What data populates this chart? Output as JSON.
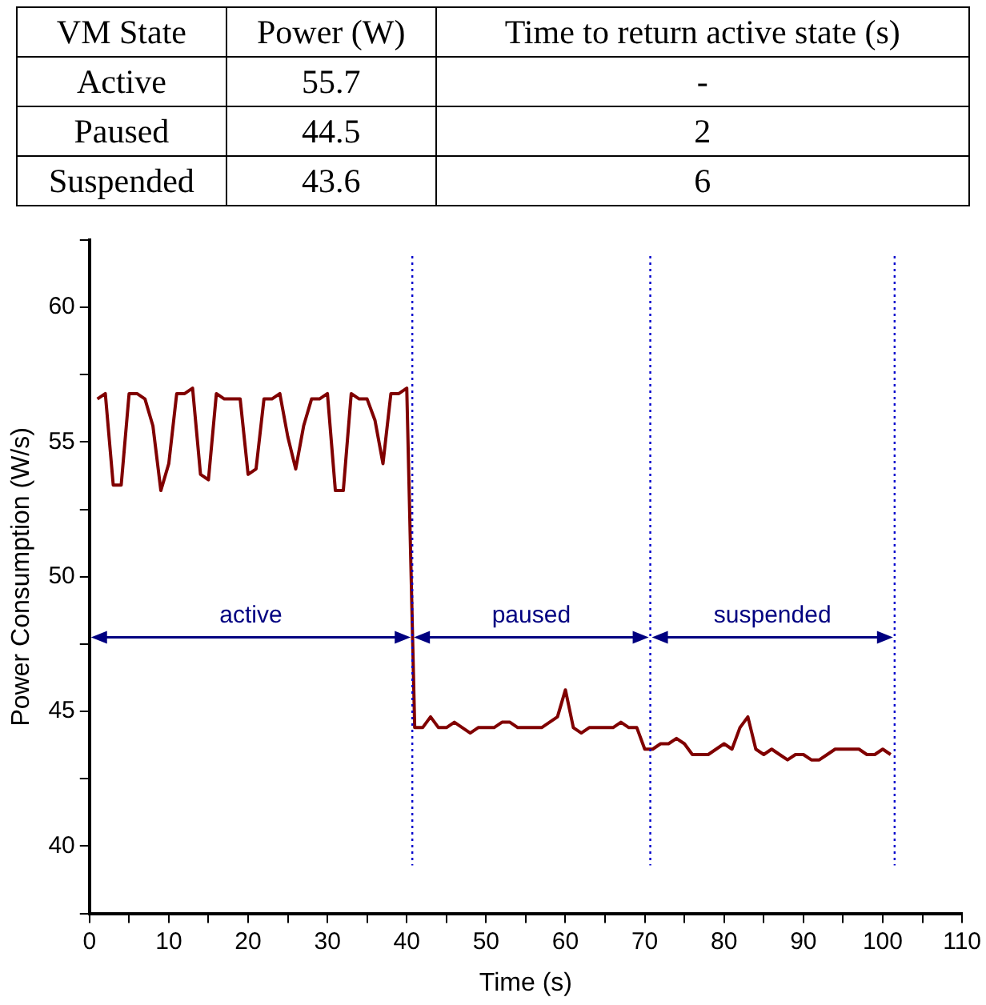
{
  "chart_data": {
    "type": "line",
    "xlabel": "Time (s)",
    "ylabel": "Power Consumption (W/s)",
    "x": [
      1,
      2,
      3,
      4,
      5,
      6,
      7,
      8,
      9,
      10,
      11,
      12,
      13,
      14,
      15,
      16,
      17,
      18,
      19,
      20,
      21,
      22,
      23,
      24,
      25,
      26,
      27,
      28,
      29,
      30,
      31,
      32,
      33,
      34,
      35,
      36,
      37,
      38,
      39,
      40,
      41,
      42,
      43,
      44,
      45,
      46,
      47,
      48,
      49,
      50,
      51,
      52,
      53,
      54,
      55,
      56,
      57,
      58,
      59,
      60,
      61,
      62,
      63,
      64,
      65,
      66,
      67,
      68,
      69,
      70,
      71,
      72,
      73,
      74,
      75,
      76,
      77,
      78,
      79,
      80,
      81,
      82,
      83,
      84,
      85,
      86,
      87,
      88,
      89,
      90,
      91,
      92,
      93,
      94,
      95,
      96,
      97,
      98,
      99,
      100,
      101
    ],
    "series": [
      {
        "color": "#800000",
        "values": [
          56.6,
          56.8,
          53.4,
          53.4,
          56.8,
          56.8,
          56.6,
          55.6,
          53.2,
          54.2,
          56.8,
          56.8,
          57.0,
          53.8,
          53.6,
          56.8,
          56.6,
          56.6,
          56.6,
          53.8,
          54.0,
          56.6,
          56.6,
          56.8,
          55.2,
          54.0,
          55.6,
          56.6,
          56.6,
          56.8,
          53.2,
          53.2,
          56.8,
          56.6,
          56.6,
          55.8,
          54.2,
          56.8,
          56.8,
          57.0,
          44.4,
          44.4,
          44.8,
          44.4,
          44.4,
          44.6,
          44.4,
          44.2,
          44.4,
          44.4,
          44.4,
          44.6,
          44.6,
          44.4,
          44.4,
          44.4,
          44.4,
          44.6,
          44.8,
          45.8,
          44.4,
          44.2,
          44.4,
          44.4,
          44.4,
          44.4,
          44.6,
          44.4,
          44.4,
          43.6,
          43.6,
          43.8,
          43.8,
          44.0,
          43.8,
          43.4,
          43.4,
          43.4,
          43.6,
          43.8,
          43.6,
          44.4,
          44.8,
          43.6,
          43.4,
          43.6,
          43.4,
          43.2,
          43.4,
          43.4,
          43.2,
          43.2,
          43.4,
          43.6,
          43.6,
          43.6,
          43.6,
          43.4,
          43.4,
          43.6,
          43.4
        ]
      }
    ],
    "xlim": [
      0,
      110
    ],
    "xticks": [
      0,
      {
        "value": 5,
        "label": null
      },
      10,
      {
        "value": 15,
        "label": null
      },
      20,
      {
        "value": 25,
        "label": null
      },
      30,
      {
        "value": 35,
        "label": null
      },
      40,
      {
        "value": 45,
        "label": null
      },
      50,
      {
        "value": 55,
        "label": null
      },
      60,
      {
        "value": 65,
        "label": null
      },
      70,
      {
        "value": 75,
        "label": null
      },
      80,
      {
        "value": 85,
        "label": null
      },
      90,
      {
        "value": 95,
        "label": null
      },
      100,
      {
        "value": 105,
        "label": null
      },
      110
    ],
    "ylim": [
      37.5,
      62.5
    ],
    "yticks": [
      {
        "value": 37.5,
        "label": null
      },
      40,
      {
        "value": 42.5,
        "label": null
      },
      45,
      {
        "value": 47.5,
        "label": null
      },
      50,
      {
        "value": 52.5,
        "label": null
      },
      55,
      {
        "value": 57.5,
        "label": null
      },
      60,
      {
        "value": 62.5,
        "label": null
      }
    ],
    "ref_lines": [
      {
        "axis": "x",
        "value": 40.7,
        "color": "#0000cc",
        "line_style": "dotted"
      },
      {
        "axis": "x",
        "value": 70.7,
        "color": "#0000cc",
        "line_style": "dotted"
      },
      {
        "axis": "x",
        "value": 101.5,
        "color": "#0000cc",
        "line_style": "dotted"
      }
    ],
    "annotations": [
      "VM State",
      "Power (W)",
      "Time to return active state (s)",
      "Active",
      "55.7",
      "-",
      "Paused",
      "44.5",
      "2",
      "Suspended",
      "43.6",
      "6",
      "active",
      "paused",
      "suspended"
    ],
    "grid": false,
    "legend": false,
    "marker": "none",
    "line_style": "solid"
  }
}
